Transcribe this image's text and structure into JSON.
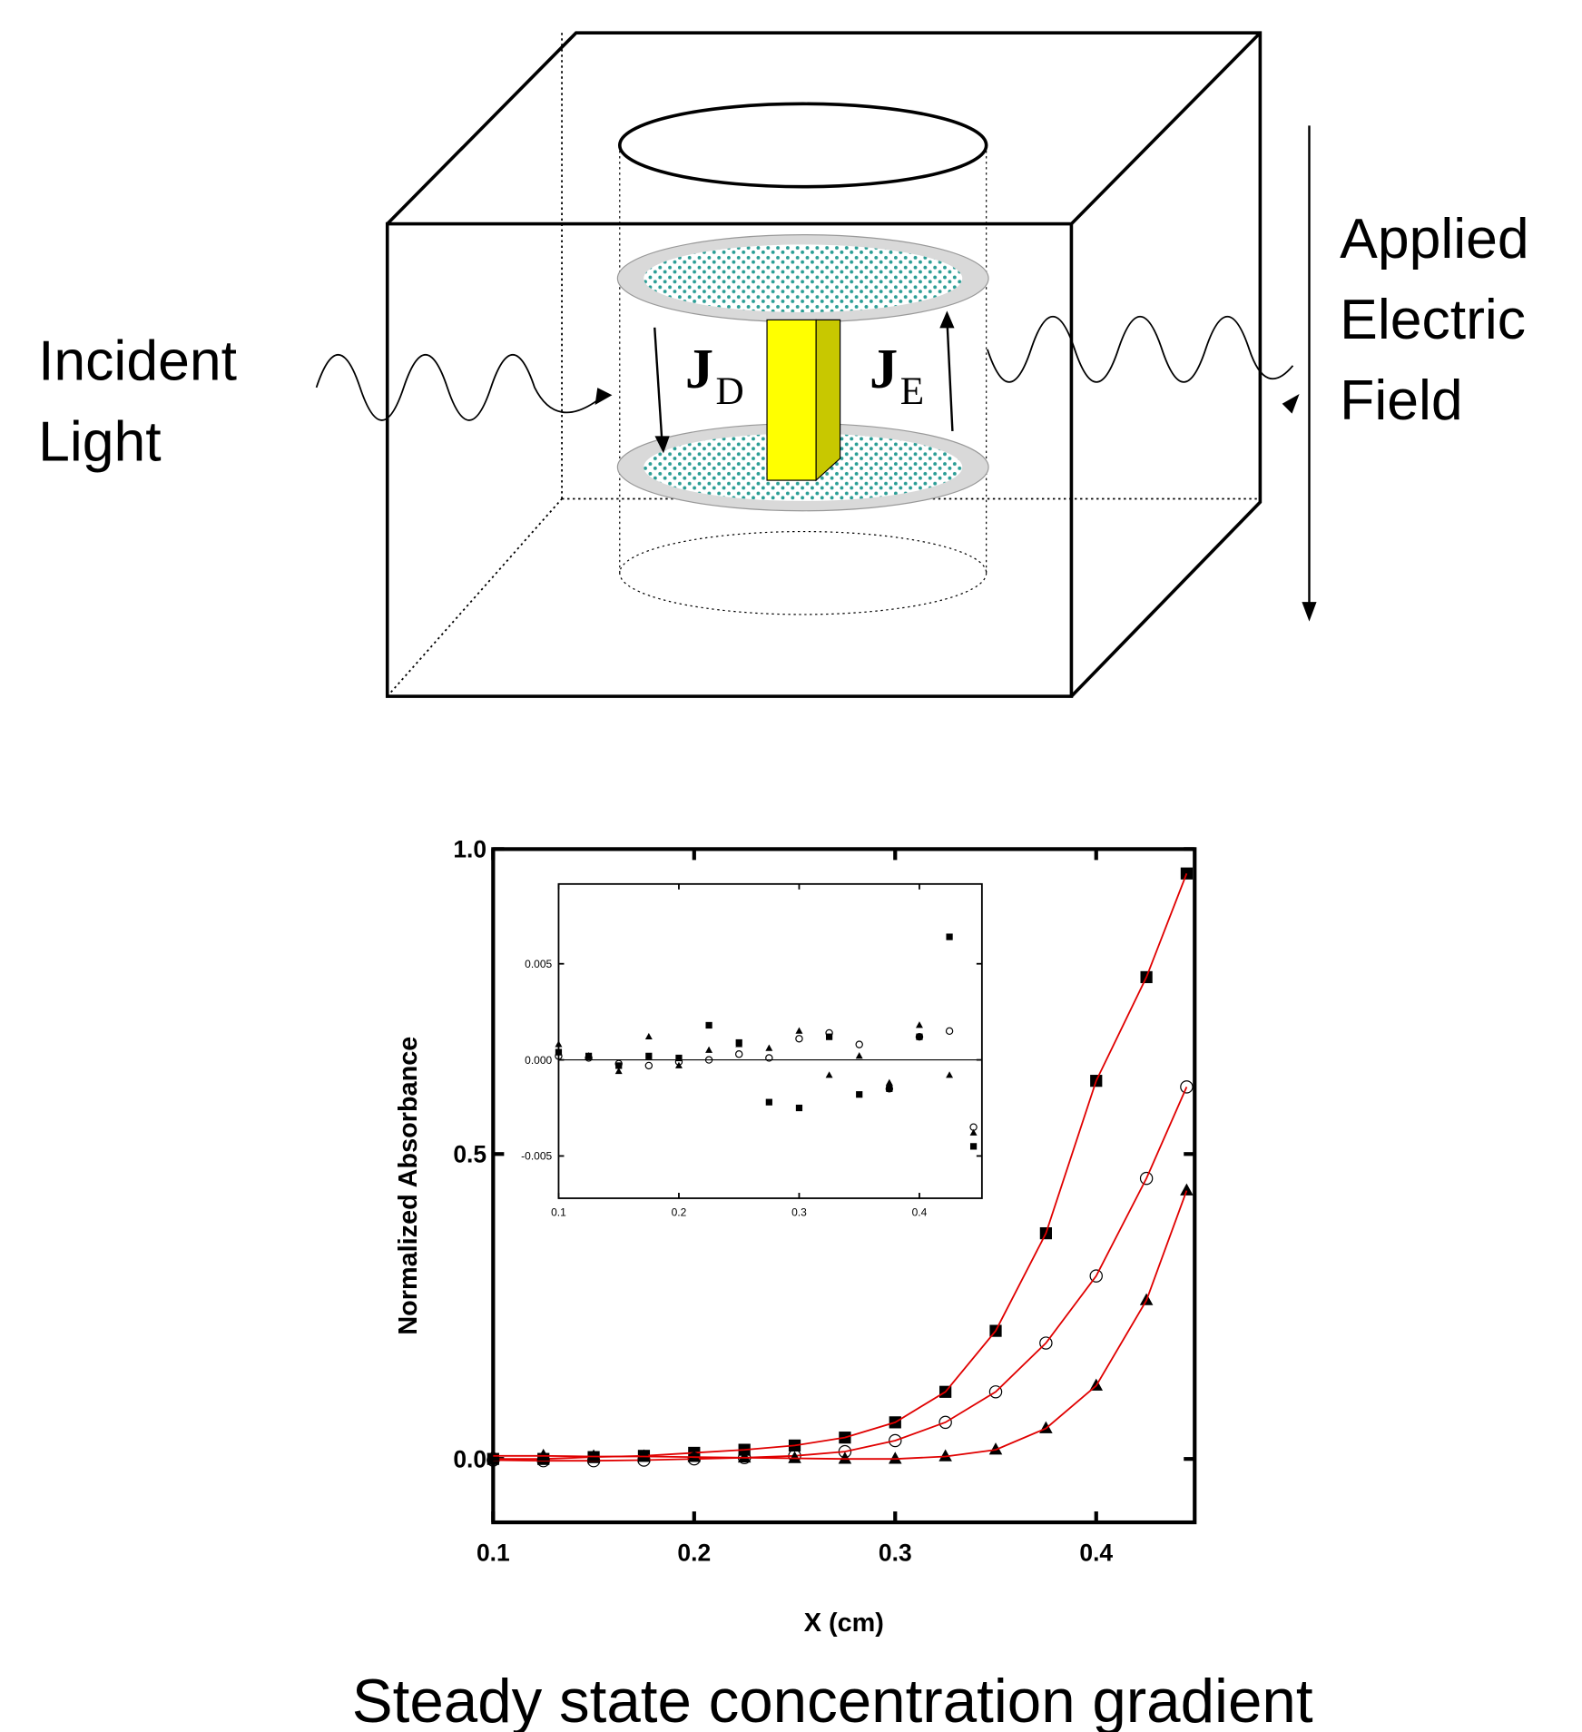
{
  "diagram": {
    "incident_label": [
      "Incident",
      "Light"
    ],
    "field_label": [
      "Applied",
      "Electric",
      "Field"
    ],
    "flux_down": {
      "symbol": "J",
      "subscript": "D"
    },
    "flux_up": {
      "symbol": "J",
      "subscript": "E"
    }
  },
  "chart_data": [
    {
      "type": "scatter",
      "xlabel": "X (cm)",
      "ylabel": "Normalized Absorbance",
      "x": [
        0.1,
        0.125,
        0.15,
        0.175,
        0.2,
        0.225,
        0.25,
        0.275,
        0.3,
        0.325,
        0.35,
        0.375,
        0.4,
        0.425,
        0.445
      ],
      "series": [
        {
          "marker": "square",
          "color": "#000000",
          "fit_color": "#e00000",
          "values": [
            0.0,
            0.0,
            0.003,
            0.005,
            0.01,
            0.015,
            0.022,
            0.035,
            0.06,
            0.11,
            0.21,
            0.37,
            0.62,
            0.79,
            0.96
          ]
        },
        {
          "marker": "circle",
          "color": "#000000",
          "fit_color": "#e00000",
          "values": [
            -0.002,
            -0.003,
            -0.003,
            -0.002,
            0.0,
            0.002,
            0.005,
            0.012,
            0.03,
            0.06,
            0.11,
            0.19,
            0.3,
            0.46,
            0.61
          ]
        },
        {
          "marker": "triangle",
          "color": "#000000",
          "fit_color": "#e00000",
          "values": [
            0.005,
            0.005,
            0.004,
            0.004,
            0.003,
            0.002,
            0.001,
            0.0,
            0.0,
            0.004,
            0.015,
            0.05,
            0.12,
            0.26,
            0.44
          ]
        }
      ],
      "xlim": [
        0.1,
        0.449
      ],
      "ylim": [
        -0.104,
        1.0
      ],
      "xticks": [
        0.1,
        0.2,
        0.3,
        0.4
      ],
      "yticks": [
        {
          "value": 0,
          "label": "0.0"
        },
        0.5,
        {
          "value": 1,
          "label": "1.0"
        }
      ]
    },
    {
      "type": "scatter",
      "x": [
        0.1,
        0.125,
        0.15,
        0.175,
        0.2,
        0.225,
        0.25,
        0.275,
        0.3,
        0.325,
        0.35,
        0.375,
        0.4,
        0.425,
        0.445
      ],
      "series": [
        {
          "marker": "square",
          "color": "#000000",
          "values": [
            0.0004,
            0.0002,
            -0.0003,
            0.0002,
            0.0001,
            0.0018,
            0.0009,
            -0.0022,
            -0.0025,
            0.0012,
            -0.0018,
            -0.0015,
            0.0012,
            0.0064,
            -0.0045
          ]
        },
        {
          "marker": "circle",
          "color": "#000000",
          "values": [
            0.0002,
            0.0001,
            -0.0002,
            -0.0003,
            -0.0001,
            0.0,
            0.0003,
            0.0001,
            0.0011,
            0.0014,
            0.0008,
            -0.0015,
            0.0012,
            0.0015,
            -0.0035
          ]
        },
        {
          "marker": "triangle",
          "color": "#000000",
          "values": [
            0.0008,
            0.0002,
            -0.0006,
            0.0012,
            -0.0003,
            0.0005,
            0.0008,
            0.0006,
            0.0015,
            -0.0008,
            0.0002,
            -0.0012,
            0.0018,
            -0.0008,
            -0.0038
          ]
        }
      ],
      "xlim": [
        0.1,
        0.452
      ],
      "ylim": [
        -0.0072,
        0.00915
      ],
      "xticks": [
        0.1,
        0.2,
        0.3,
        0.4
      ],
      "yticks": [
        0.005,
        {
          "value": 0,
          "label": "0.000"
        },
        -0.005
      ]
    }
  ],
  "caption": "Steady state concentration gradient"
}
